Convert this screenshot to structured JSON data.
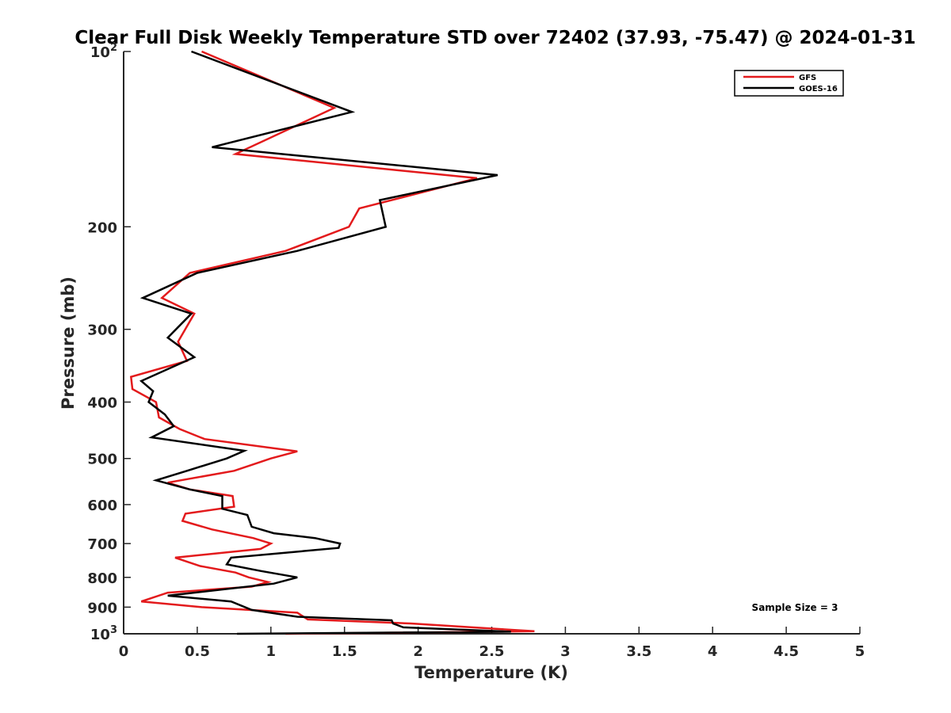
{
  "chart_data": {
    "type": "line",
    "title": "Clear Full Disk Weekly Temperature STD over 72402 (37.93, -75.47) @ 2024-01-31",
    "xlabel": "Temperature (K)",
    "ylabel": "Pressure (mb)",
    "xlim": [
      0,
      5
    ],
    "ylim": [
      100,
      1000
    ],
    "yscale": "log",
    "yreversed": true,
    "grid": false,
    "legend_position": "top-right",
    "x_ticks": [
      "0",
      "0.5",
      "1",
      "1.5",
      "2",
      "2.5",
      "3",
      "3.5",
      "4",
      "4.5",
      "5"
    ],
    "y_ticks": [
      {
        "value": 100,
        "base": "10",
        "exp": "2"
      },
      {
        "value": 200,
        "label": "200"
      },
      {
        "value": 300,
        "label": "300"
      },
      {
        "value": 400,
        "label": "400"
      },
      {
        "value": 500,
        "label": "500"
      },
      {
        "value": 600,
        "label": "600"
      },
      {
        "value": 700,
        "label": "700"
      },
      {
        "value": 800,
        "label": "800"
      },
      {
        "value": 900,
        "label": "900"
      },
      {
        "value": 1000,
        "base": "10",
        "exp": "3"
      }
    ],
    "annotation": "Sample Size = 3",
    "series": [
      {
        "name": "GFS",
        "color": "#e31a1c",
        "points": [
          [
            0.53,
            100
          ],
          [
            1.43,
            125
          ],
          [
            0.76,
            150
          ],
          [
            2.4,
            165
          ],
          [
            1.6,
            186
          ],
          [
            1.53,
            200
          ],
          [
            1.1,
            220
          ],
          [
            0.45,
            240
          ],
          [
            0.26,
            265
          ],
          [
            0.48,
            282
          ],
          [
            0.37,
            315
          ],
          [
            0.43,
            340
          ],
          [
            0.05,
            362
          ],
          [
            0.06,
            380
          ],
          [
            0.22,
            400
          ],
          [
            0.24,
            425
          ],
          [
            0.38,
            445
          ],
          [
            0.55,
            463
          ],
          [
            1.18,
            486
          ],
          [
            1.0,
            500
          ],
          [
            0.75,
            525
          ],
          [
            0.3,
            550
          ],
          [
            0.45,
            565
          ],
          [
            0.74,
            580
          ],
          [
            0.75,
            605
          ],
          [
            0.42,
            622
          ],
          [
            0.4,
            640
          ],
          [
            0.6,
            662
          ],
          [
            0.88,
            685
          ],
          [
            1.0,
            700
          ],
          [
            0.93,
            715
          ],
          [
            0.35,
            740
          ],
          [
            0.52,
            765
          ],
          [
            0.76,
            785
          ],
          [
            0.85,
            800
          ],
          [
            0.98,
            815
          ],
          [
            0.87,
            830
          ],
          [
            0.3,
            850
          ],
          [
            0.12,
            880
          ],
          [
            0.53,
            900
          ],
          [
            1.18,
            920
          ],
          [
            1.25,
            945
          ],
          [
            1.95,
            960
          ],
          [
            2.79,
            990
          ],
          [
            1.1,
            1000
          ]
        ]
      },
      {
        "name": "GOES-16",
        "color": "#000000",
        "points": [
          [
            0.46,
            100
          ],
          [
            1.55,
            127
          ],
          [
            0.6,
            146
          ],
          [
            2.54,
            163
          ],
          [
            1.74,
            180
          ],
          [
            1.78,
            200
          ],
          [
            1.18,
            220
          ],
          [
            0.5,
            240
          ],
          [
            0.13,
            265
          ],
          [
            0.46,
            282
          ],
          [
            0.3,
            310
          ],
          [
            0.48,
            335
          ],
          [
            0.12,
            368
          ],
          [
            0.2,
            383
          ],
          [
            0.17,
            400
          ],
          [
            0.28,
            420
          ],
          [
            0.34,
            440
          ],
          [
            0.19,
            460
          ],
          [
            0.82,
            485
          ],
          [
            0.7,
            500
          ],
          [
            0.43,
            525
          ],
          [
            0.22,
            545
          ],
          [
            0.45,
            565
          ],
          [
            0.67,
            580
          ],
          [
            0.67,
            610
          ],
          [
            0.84,
            625
          ],
          [
            0.87,
            655
          ],
          [
            1.02,
            672
          ],
          [
            1.3,
            685
          ],
          [
            1.47,
            700
          ],
          [
            1.46,
            712
          ],
          [
            0.73,
            740
          ],
          [
            0.7,
            760
          ],
          [
            0.93,
            780
          ],
          [
            1.18,
            800
          ],
          [
            1.02,
            820
          ],
          [
            0.3,
            860
          ],
          [
            0.73,
            880
          ],
          [
            0.87,
            910
          ],
          [
            1.18,
            935
          ],
          [
            1.82,
            948
          ],
          [
            1.83,
            960
          ],
          [
            1.9,
            975
          ],
          [
            2.63,
            992
          ],
          [
            0.77,
            1000
          ]
        ]
      }
    ]
  }
}
